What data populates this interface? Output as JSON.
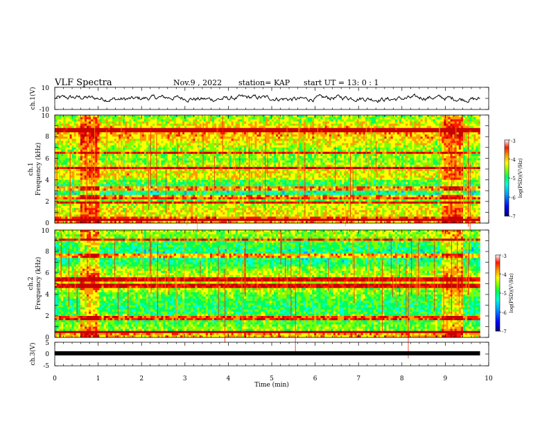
{
  "header": {
    "title": "VLF Spectra",
    "date": "Nov.9  , 2022",
    "station": "station= KAP",
    "start": "start  UT  =   13: 0  : 1"
  },
  "chart_data": [
    {
      "type": "line",
      "ylabel": "ch.1(V)",
      "xlim": [
        0,
        10
      ],
      "ylim": [
        -10,
        10
      ],
      "y_tick_labels": [
        "10",
        "-10"
      ],
      "trace": {
        "mean": 0,
        "amplitude": 3.5,
        "x_end": 9.8
      }
    },
    {
      "type": "heatmap",
      "ylabel": "ch.1\nFrequency (kHz)",
      "ylabel_lines": [
        "ch.1",
        "Frequency  (kHz)"
      ],
      "xlim": [
        0,
        10
      ],
      "ylim": [
        0,
        10
      ],
      "y_tick_labels": [
        "0",
        "2",
        "4",
        "6",
        "8",
        "10"
      ],
      "data_x_end": 9.8,
      "colorbar": {
        "label": "log(PSD)(V²/Hz)",
        "range": [
          -7,
          -3
        ],
        "tick_labels": [
          "-3",
          "-4",
          "-5",
          "-6",
          "-7"
        ]
      },
      "bright_bands_min": [
        [
          0.6,
          1.05
        ],
        [
          8.9,
          9.4
        ]
      ],
      "red_lines_khz": [
        0.3,
        1.9,
        2.4,
        3.2,
        5.1,
        6.5,
        8.6
      ]
    },
    {
      "type": "heatmap",
      "ylabel": "ch.2\nFrequency (kHz)",
      "ylabel_lines": [
        "ch.2",
        "Frequency  (kHz)"
      ],
      "xlim": [
        0,
        10
      ],
      "ylim": [
        0,
        10
      ],
      "y_tick_labels": [
        "0",
        "2",
        "4",
        "6",
        "8",
        "10"
      ],
      "data_x_end": 9.8,
      "colorbar": {
        "label": "log(PSD)(V²/Hz)",
        "range": [
          -7,
          -3
        ],
        "tick_labels": [
          "-3",
          "-4",
          "-5",
          "-6",
          "-7"
        ]
      },
      "bright_bands_min": [
        [
          0.6,
          1.05
        ],
        [
          8.9,
          9.4
        ]
      ],
      "red_lines_khz": [
        0.5,
        1.8,
        4.8,
        5.4,
        7.6,
        9.1
      ]
    },
    {
      "type": "line",
      "ylabel": "ch.3(V)",
      "xlabel": "Time  (min)",
      "xlim": [
        0,
        10
      ],
      "ylim": [
        -5,
        5
      ],
      "y_tick_labels": [
        "5",
        "0",
        "-5"
      ],
      "x_tick_labels": [
        "0",
        "1",
        "2",
        "3",
        "4",
        "5",
        "6",
        "7",
        "8",
        "9",
        "10"
      ],
      "trace": {
        "level": -0.5,
        "x_end": 9.8
      }
    }
  ],
  "colors": {
    "colormap": [
      "#00007a",
      "#0000ff",
      "#00a8ff",
      "#00ffd2",
      "#00ff5a",
      "#7cff00",
      "#ffff00",
      "#ff9a00",
      "#ff1a00",
      "#c80000"
    ],
    "trace": "#000000"
  }
}
